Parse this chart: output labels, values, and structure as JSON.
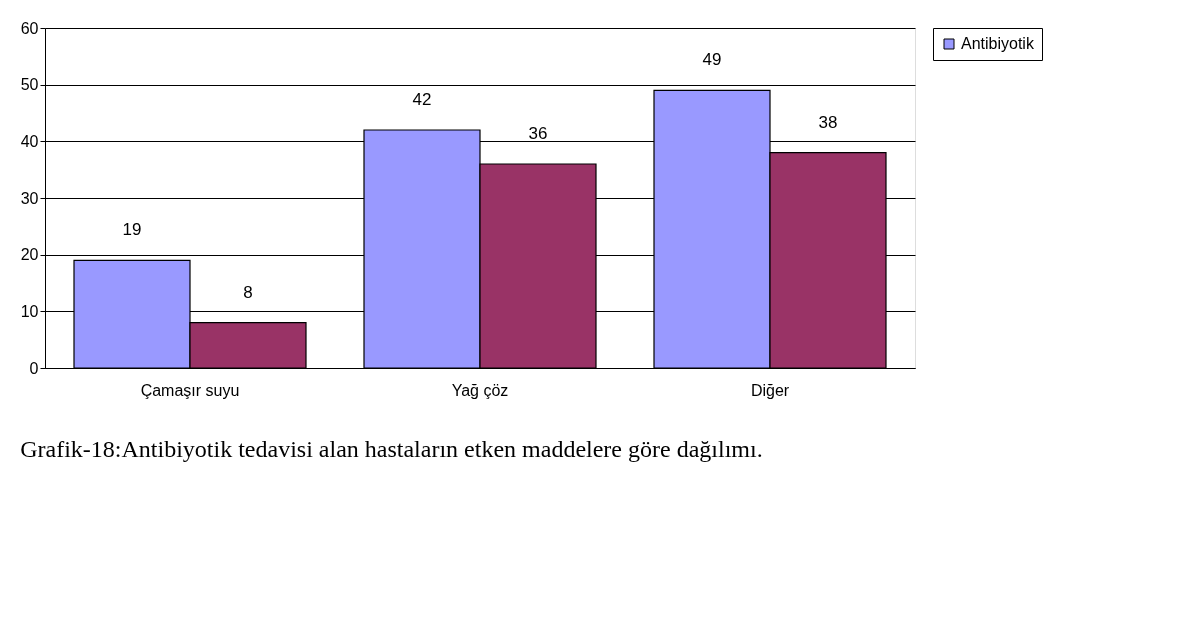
{
  "chart_data": {
    "type": "bar",
    "categories": [
      "Çamaşır suyu",
      "Yağ çöz",
      "Diğer"
    ],
    "series": [
      {
        "name": "Antibiyotik",
        "color": "#9999ff",
        "values": [
          19,
          42,
          49
        ]
      },
      {
        "color": "#993366",
        "values": [
          8,
          36,
          38
        ]
      }
    ],
    "ylim": [
      0,
      60
    ],
    "yticks": [
      0,
      10,
      20,
      30,
      40,
      50,
      60
    ],
    "grid": "y",
    "legend": "right",
    "data_labels": true,
    "annotations": [
      "Grafik-18:Antibiyotik tedavisi alan hastaların etken maddelere göre dağılımı."
    ]
  }
}
